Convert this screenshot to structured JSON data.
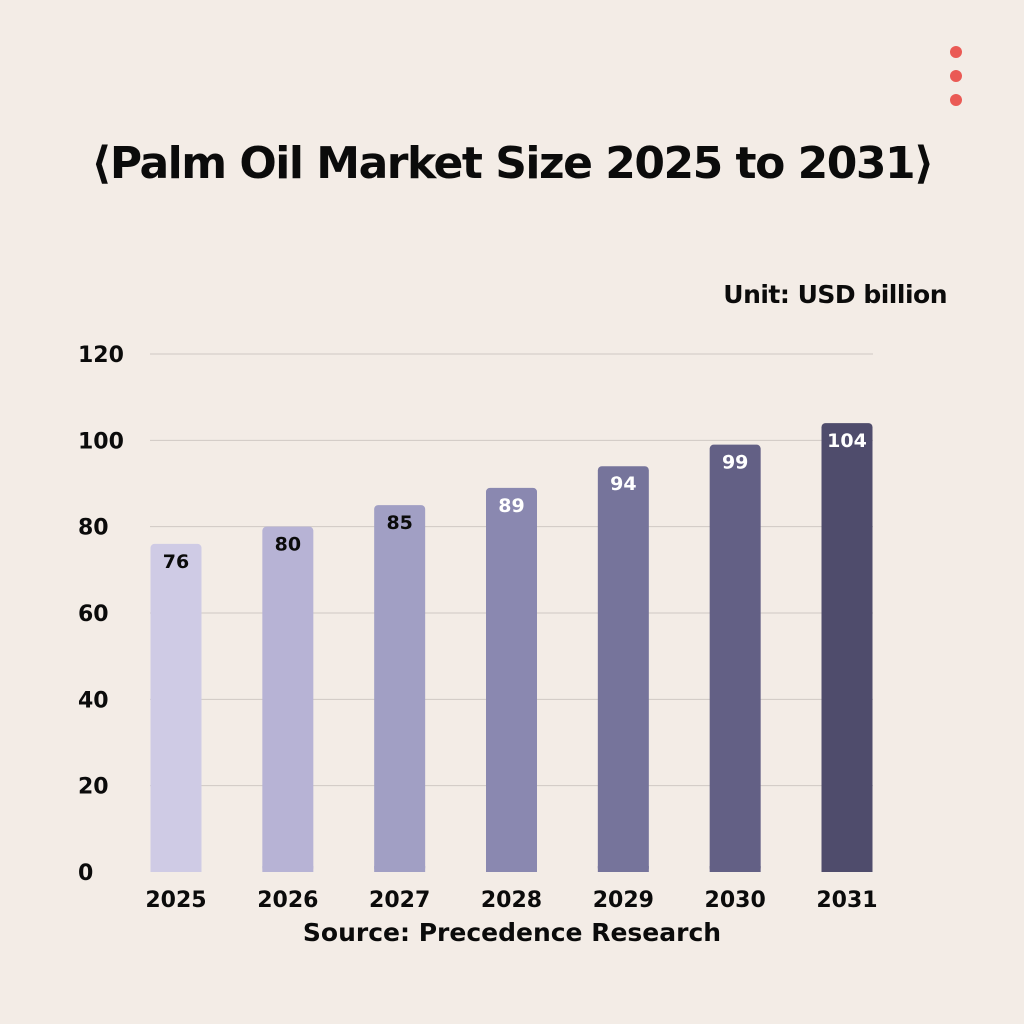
{
  "title": "⟨Palm Oil Market Size 2025 to 2031⟩",
  "unit_label": "Unit: USD billion",
  "source_label": "Source: Precedence Research",
  "menu": {
    "icon": "more-vertical-icon",
    "color": "#ea5a55"
  },
  "chart_data": {
    "type": "bar",
    "title": "⟨Palm Oil Market Size 2025 to 2031⟩",
    "categories": [
      "2025",
      "2026",
      "2027",
      "2028",
      "2029",
      "2030",
      "2031"
    ],
    "values": [
      76,
      80,
      85,
      89,
      94,
      99,
      104
    ],
    "xlabel": "",
    "ylabel": "",
    "ylim": [
      0,
      120
    ],
    "yticks": [
      0,
      20,
      40,
      60,
      80,
      100,
      120
    ],
    "grid": true,
    "legend": "none",
    "bar_colors": [
      "#cfcbe5",
      "#b7b3d5",
      "#a19fc4",
      "#8a88b0",
      "#76749b",
      "#636085",
      "#4f4c6c"
    ],
    "label_colors": [
      "#0b0b0b",
      "#0b0b0b",
      "#0b0b0b",
      "#ffffff",
      "#ffffff",
      "#ffffff",
      "#ffffff"
    ]
  }
}
